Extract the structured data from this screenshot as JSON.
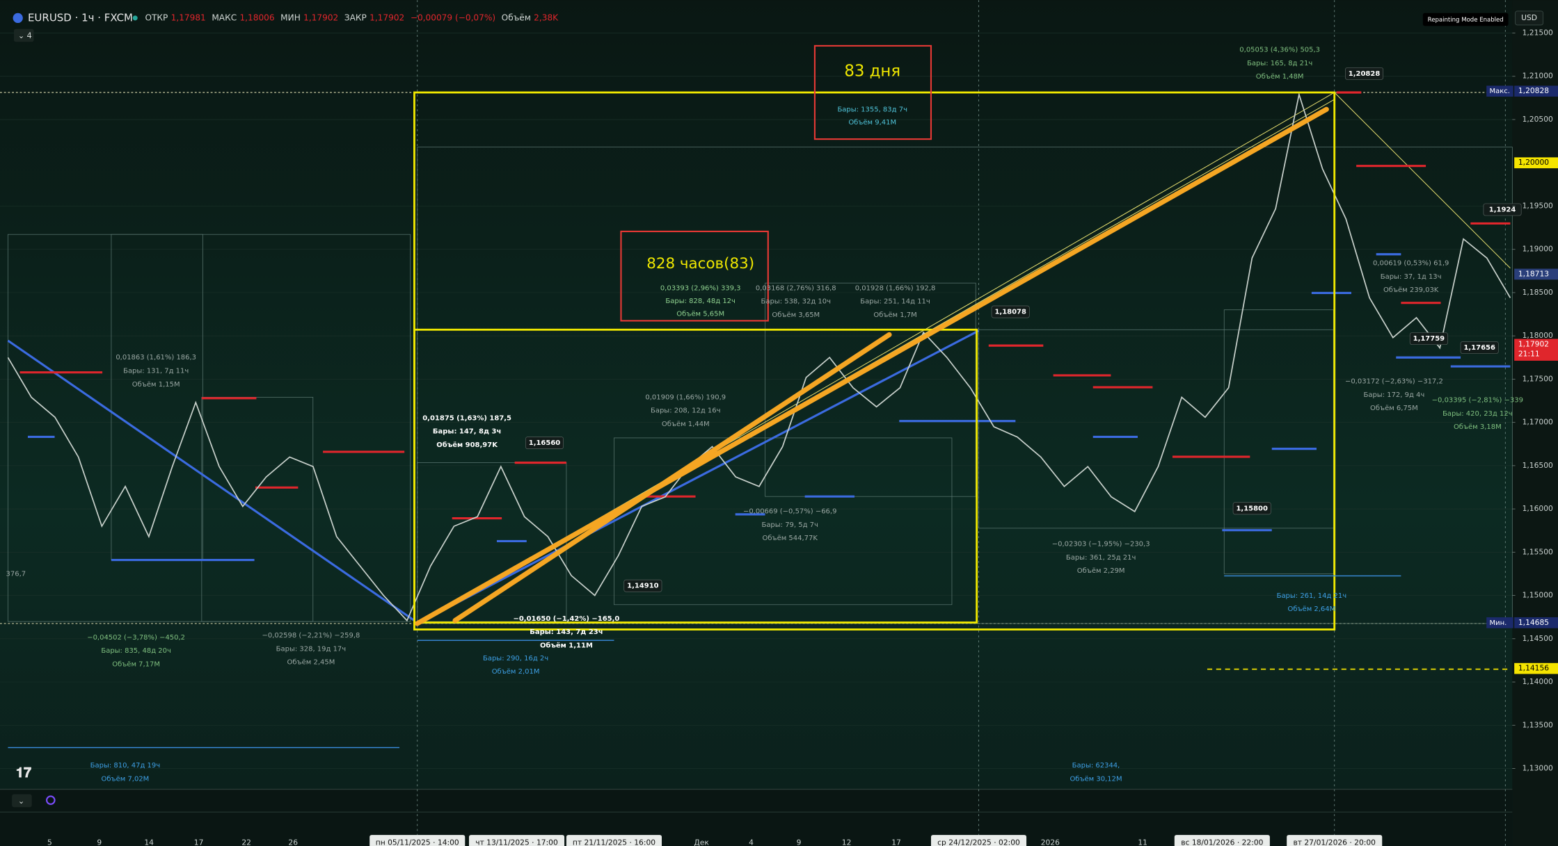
{
  "header": {
    "symbol": "EURUSD · 1ч · FXCM",
    "open_label": "ОТКР",
    "open": "1,17981",
    "high_label": "МАКС",
    "high": "1,18006",
    "low_label": "МИН",
    "low": "1,17902",
    "close_label": "ЗАКР",
    "close": "1,17902",
    "change": "−0,00079 (−0,07%)",
    "volume_label": "Объём",
    "volume": "2,38K",
    "indicator_count": "4"
  },
  "repainting": "Repainting Mode Enabled",
  "currency": "USD",
  "chart_data": {
    "type": "line",
    "series": [
      {
        "color": "#c9d1cc",
        "values": [
          1.1775,
          1.1729,
          1.1706,
          1.166,
          1.158,
          1.1626,
          1.1568,
          1.1649,
          1.1723,
          1.1649,
          1.1603,
          1.1637,
          1.166,
          1.1649,
          1.1568,
          1.1534,
          1.15,
          1.1471,
          1.1534,
          1.158,
          1.1591,
          1.1649,
          1.1591,
          1.1568,
          1.1523,
          1.15,
          1.1546,
          1.1603,
          1.1614,
          1.1649,
          1.1672,
          1.1637,
          1.1626,
          1.1672,
          1.1752,
          1.1775,
          1.174,
          1.1718,
          1.174,
          1.1804,
          1.1775,
          1.174,
          1.1695,
          1.1683,
          1.166,
          1.1626,
          1.1649,
          1.1614,
          1.1597,
          1.1649,
          1.1729,
          1.1706,
          1.174,
          1.189,
          1.1947,
          1.2079,
          1.1993,
          1.1935,
          1.1844,
          1.1798,
          1.1821,
          1.1786,
          1.1912,
          1.189,
          1.1844
        ]
      }
    ],
    "ylim": [
      1.1276,
      1.2188
    ],
    "yticks": [
      {
        "value": 1.215,
        "label": "1,21500"
      },
      {
        "value": 1.21,
        "label": "1,21000"
      },
      {
        "value": 1.205,
        "label": "1,20500"
      },
      {
        "value": 1.195,
        "label": "1,19500"
      },
      {
        "value": 1.19,
        "label": "1,19000"
      },
      {
        "value": 1.185,
        "label": "1,18500"
      },
      {
        "value": 1.18,
        "label": "1,18000"
      },
      {
        "value": 1.175,
        "label": "1,17500"
      },
      {
        "value": 1.17,
        "label": "1,17000"
      },
      {
        "value": 1.165,
        "label": "1,16500"
      },
      {
        "value": 1.16,
        "label": "1,16000"
      },
      {
        "value": 1.155,
        "label": "1,15500"
      },
      {
        "value": 1.15,
        "label": "1,15000"
      },
      {
        "value": 1.145,
        "label": "1,14500"
      },
      {
        "value": 1.14,
        "label": "1,14000"
      },
      {
        "value": 1.135,
        "label": "1,13500"
      },
      {
        "value": 1.13,
        "label": "1,13000"
      }
    ],
    "grid": true,
    "price_labels": [
      {
        "value": 1.20828,
        "label": "1,20828",
        "tag": "Макс.",
        "color": "#1b2a6b"
      },
      {
        "value": 1.2,
        "label": "1,20000",
        "color": "#f5e400"
      },
      {
        "value": 1.18713,
        "label": "1,18713",
        "color": "#2a3f7a"
      },
      {
        "value": 1.17902,
        "label": "1,17902",
        "sub": "21:11",
        "color": "#e0262c"
      },
      {
        "value": 1.14685,
        "label": "1,14685",
        "tag": "Мин.",
        "color": "#1b2a6b"
      },
      {
        "value": 1.14156,
        "label": "1,14156",
        "color": "#f5e400"
      }
    ]
  },
  "x_axis_labels": [
    "5",
    "9",
    "14",
    "17",
    "22",
    "26",
    "пн 05/11/2025 · 14:00",
    "чт 13/11/2025 · 17:00",
    "пт 21/11/2025 · 16:00",
    "Дек",
    "4",
    "9",
    "12",
    "17",
    "ср 24/12/2025 · 02:00",
    "2026",
    "11",
    "вс 18/01/2026 · 22:00",
    "вт 27/01/2026 · 20:00"
  ],
  "boxes": [
    {
      "title": "83 дня",
      "lines": [
        "Бары: 1355, 83д 7ч",
        "Объём 9,41M"
      ]
    },
    {
      "title": "828 часов(83)",
      "lines": [
        "0,03393 (2,96%) 339,3",
        "Бары: 828, 48д 12ч",
        "Объём 5,65M"
      ]
    }
  ],
  "measurements": [
    {
      "lines": [
        "0,05053 (4,36%) 505,3",
        "Бары: 165, 8д 21ч",
        "Объём 1,48M"
      ]
    },
    {
      "lines": [
        "0,01863 (1,61%) 186,3",
        "Бары: 131, 7д 11ч",
        "Объём 1,15M"
      ]
    },
    {
      "lines": [
        "0,01875 (1,63%) 187,5",
        "Бары: 147, 8д 3ч",
        "Объём 908,97K"
      ]
    },
    {
      "lines": [
        "0,01909 (1,66%) 190,9",
        "Бары: 208, 12д 16ч",
        "Объём 1,44M"
      ]
    },
    {
      "lines": [
        "0,03168 (2,76%) 316,8",
        "Бары: 538, 32д 10ч",
        "Объём 3,65M"
      ]
    },
    {
      "lines": [
        "0,01928 (1,66%) 192,8",
        "Бары: 251, 14д 11ч",
        "Объём 1,7M"
      ]
    },
    {
      "lines": [
        "−0,00669 (−0,57%) −66,9",
        "Бары: 79, 5д 7ч",
        "Объём 544,77K"
      ]
    },
    {
      "lines": [
        "−0,04502 (−3,78%) −450,2",
        "Бары: 835, 48д 20ч",
        "Объём 7,17M"
      ]
    },
    {
      "lines": [
        "−0,02598 (−2,21%) −259,8",
        "Бары: 328, 19д 17ч",
        "Объём 2,45M"
      ]
    },
    {
      "lines": [
        "−0,01650 (−1,42%) −165,0",
        "Бары: 143, 7д 23ч",
        "Объём 1,11M"
      ]
    },
    {
      "lines": [
        "Бары: 290, 16д 2ч",
        "Объём 2,01M"
      ]
    },
    {
      "lines": [
        "−0,02303 (−1,95%) −230,3",
        "Бары: 361, 25д 21ч",
        "Объём 2,29M"
      ]
    },
    {
      "lines": [
        "Бары: 261, 14д 21ч",
        "Объём 2,64M"
      ]
    },
    {
      "lines": [
        "0,00619 (0,53%) 61,9",
        "Бары: 37, 1д 13ч",
        "Объём 239,03K"
      ]
    },
    {
      "lines": [
        "−0,03172 (−2,63%) −317,2",
        "Бары: 172, 9д 4ч",
        "Объём 6,75M"
      ]
    },
    {
      "lines": [
        "−0,03395 (−2,81%) −339",
        "Бары: 420, 23д 12ч",
        "Объём 3,18M"
      ]
    },
    {
      "lines": [
        "Бары: 810, 47д 19ч",
        "Объём 7,02M"
      ]
    },
    {
      "lines": [
        "Бары: 62344,",
        "Объём 30,12M"
      ]
    }
  ],
  "callouts": [
    "1,20828",
    "1,18078",
    "1,16560",
    "1,14910",
    "1,15800",
    "1,17759",
    "1,17656",
    "1,1924"
  ],
  "left_note": "376,7"
}
